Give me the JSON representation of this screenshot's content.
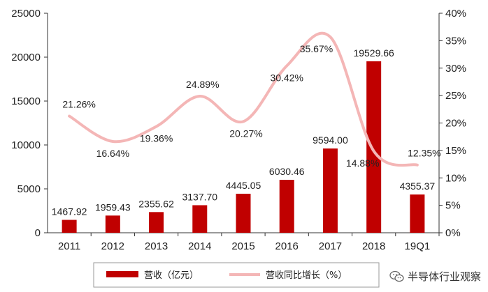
{
  "chart_data": {
    "type": "bar",
    "categories": [
      "2011",
      "2012",
      "2013",
      "2014",
      "2015",
      "2016",
      "2017",
      "2018",
      "19Q1"
    ],
    "series": [
      {
        "name": "营收（亿元）",
        "type": "bar",
        "axis": "left",
        "values": [
          1467.92,
          1959.43,
          2355.62,
          3137.7,
          4445.05,
          6030.46,
          9594.0,
          19529.66,
          4355.37
        ],
        "labels": [
          "1467.92",
          "1959.43",
          "2355.62",
          "3137.70",
          "4445.05",
          "6030.46",
          "9594.00",
          "19529.66",
          "4355.37"
        ],
        "color": "#c00000"
      },
      {
        "name": "营收同比增长（%）",
        "type": "line",
        "axis": "right",
        "values": [
          21.26,
          16.64,
          19.36,
          24.89,
          20.27,
          30.42,
          35.67,
          14.88,
          12.35
        ],
        "labels": [
          "21.26%",
          "16.64%",
          "19.36%",
          "24.89%",
          "20.27%",
          "30.42%",
          "35.67%",
          "14.88%",
          "12.35%"
        ],
        "color": "#f4b6b6"
      }
    ],
    "left_axis": {
      "ylim": [
        0,
        25000
      ],
      "ticks": [
        "0",
        "5000",
        "10000",
        "15000",
        "20000",
        "25000"
      ]
    },
    "right_axis": {
      "ylim": [
        0,
        40
      ],
      "ticks": [
        "0%",
        "5%",
        "10%",
        "15%",
        "20%",
        "25%",
        "30%",
        "35%",
        "40%"
      ]
    },
    "legend_position": "bottom"
  },
  "watermark": {
    "text": "半导体行业观察",
    "icon": "wechat-icon"
  }
}
